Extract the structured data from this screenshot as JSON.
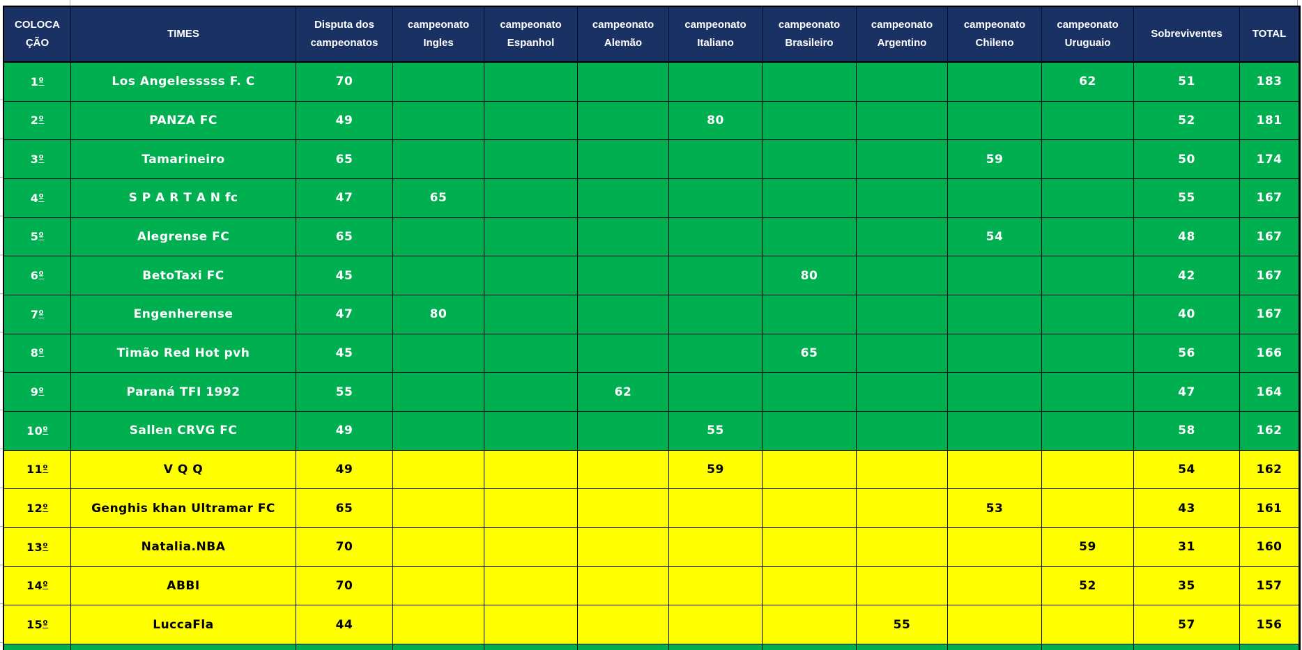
{
  "theme": {
    "header_bg": "#1A3263",
    "green": "#00B050",
    "yellow": "#FFFF00",
    "green_text": "#FFFFFF",
    "yellow_text": "#000000",
    "grid_line": "#000000"
  },
  "table": {
    "columns": [
      {
        "key": "pos",
        "label": "COLOCA ÇÃO"
      },
      {
        "key": "team",
        "label": "TIMES"
      },
      {
        "key": "disputa",
        "label": "Disputa dos campeonatos"
      },
      {
        "key": "ingles",
        "label": "campeonato Ingles"
      },
      {
        "key": "espanhol",
        "label": "campeonato Espanhol"
      },
      {
        "key": "alemao",
        "label": "campeonato Alemão"
      },
      {
        "key": "italiano",
        "label": "campeonato Italiano"
      },
      {
        "key": "brasileiro",
        "label": "campeonato Brasileiro"
      },
      {
        "key": "argentino",
        "label": "campeonato Argentino"
      },
      {
        "key": "chileno",
        "label": "campeonato Chileno"
      },
      {
        "key": "uruguaio",
        "label": "campeonato Uruguaio"
      },
      {
        "key": "sobreviventes",
        "label": "Sobreviventes"
      },
      {
        "key": "total",
        "label": "TOTAL"
      }
    ],
    "rows": [
      {
        "zone": "green",
        "pos": "1º",
        "team": "Los Angelesssss F. C",
        "disputa": "70",
        "uruguaio": "62",
        "sobreviventes": "51",
        "total": "183"
      },
      {
        "zone": "green",
        "pos": "2º",
        "team": "PANZA FC",
        "disputa": "49",
        "italiano": "80",
        "sobreviventes": "52",
        "total": "181"
      },
      {
        "zone": "green",
        "pos": "3º",
        "team": "Tamarineiro",
        "disputa": "65",
        "chileno": "59",
        "sobreviventes": "50",
        "total": "174"
      },
      {
        "zone": "green",
        "pos": "4º",
        "team": "S P A R T A N fc",
        "disputa": "47",
        "ingles": "65",
        "sobreviventes": "55",
        "total": "167"
      },
      {
        "zone": "green",
        "pos": "5º",
        "team": "Alegrense FC",
        "disputa": "65",
        "chileno": "54",
        "sobreviventes": "48",
        "total": "167"
      },
      {
        "zone": "green",
        "pos": "6º",
        "team": "BetoTaxi FC",
        "disputa": "45",
        "brasileiro": "80",
        "sobreviventes": "42",
        "total": "167"
      },
      {
        "zone": "green",
        "pos": "7º",
        "team": "Engenherense",
        "disputa": "47",
        "ingles": "80",
        "sobreviventes": "40",
        "total": "167"
      },
      {
        "zone": "green",
        "pos": "8º",
        "team": "Timão Red Hot pvh",
        "disputa": "45",
        "brasileiro": "65",
        "sobreviventes": "56",
        "total": "166"
      },
      {
        "zone": "green",
        "pos": "9º",
        "team": "Paraná TFI 1992",
        "disputa": "55",
        "alemao": "62",
        "sobreviventes": "47",
        "total": "164"
      },
      {
        "zone": "green",
        "pos": "10º",
        "team": "Sallen CRVG FC",
        "disputa": "49",
        "italiano": "55",
        "sobreviventes": "58",
        "total": "162"
      },
      {
        "zone": "yellow",
        "pos": "11º",
        "team": "V Q Q",
        "disputa": "49",
        "italiano": "59",
        "sobreviventes": "54",
        "total": "162"
      },
      {
        "zone": "yellow",
        "pos": "12º",
        "team": "Genghis khan Ultramar FC",
        "disputa": "65",
        "chileno": "53",
        "sobreviventes": "43",
        "total": "161"
      },
      {
        "zone": "yellow",
        "pos": "13º",
        "team": "Natalia.NBA",
        "disputa": "70",
        "uruguaio": "59",
        "sobreviventes": "31",
        "total": "160"
      },
      {
        "zone": "yellow",
        "pos": "14º",
        "team": "ABBI",
        "disputa": "70",
        "uruguaio": "52",
        "sobreviventes": "35",
        "total": "157"
      },
      {
        "zone": "yellow",
        "pos": "15º",
        "team": "LuccaFla",
        "disputa": "44",
        "argentino": "55",
        "sobreviventes": "57",
        "total": "156"
      }
    ]
  }
}
